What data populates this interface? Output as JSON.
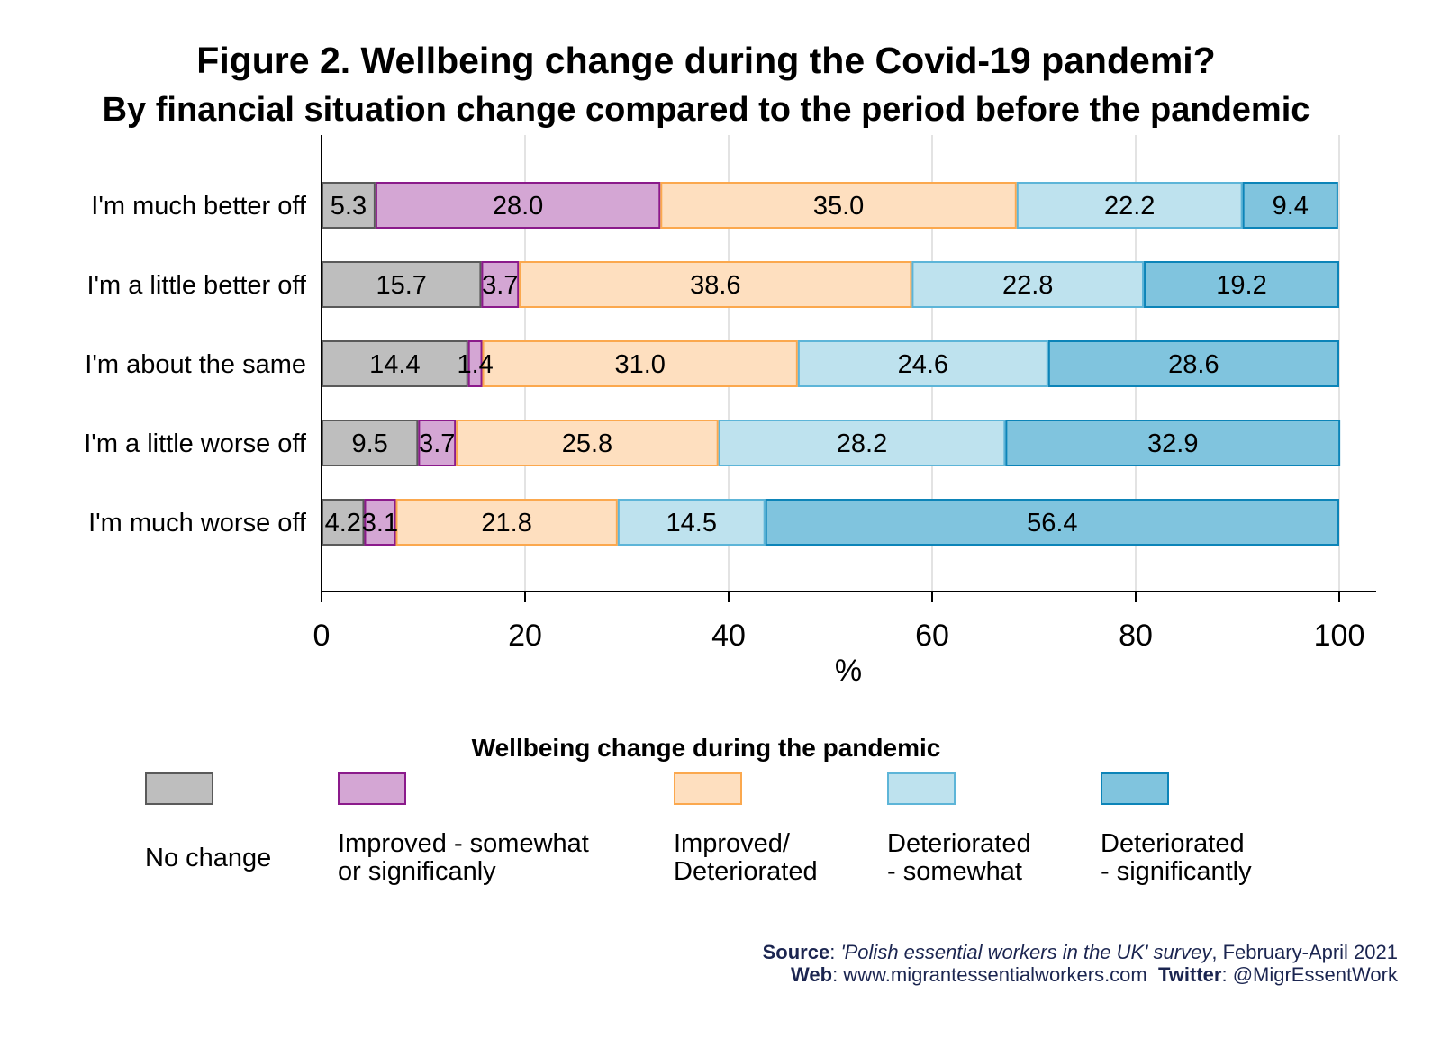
{
  "chart_data": {
    "type": "bar",
    "orientation": "horizontal",
    "stacked": true,
    "title": "Figure 2. Wellbeing change during the Covid-19 pandemi?",
    "subtitle": "By financial situation change compared to the period before the pandemic",
    "xlabel": "%",
    "ylabel": "",
    "xlim": [
      0,
      100
    ],
    "xticks": [
      "0",
      "20",
      "40",
      "60",
      "80",
      "100"
    ],
    "xtick_values": [
      0,
      20,
      40,
      60,
      80,
      100
    ],
    "grid": true,
    "categories": [
      "I'm much better off",
      "I'm a little better off",
      "I'm about the same",
      "I'm a little worse off",
      "I'm much worse off"
    ],
    "series": [
      {
        "name": "No change",
        "values": [
          5.3,
          15.7,
          14.4,
          9.5,
          4.2
        ],
        "fill": "#bebebe",
        "stroke": "#5a5a5a"
      },
      {
        "name": "Improved - somewhat or significanly",
        "values": [
          28.0,
          3.7,
          1.4,
          3.7,
          3.1
        ],
        "fill": "#d4a6d4",
        "stroke": "#8b1a8b"
      },
      {
        "name": "Improved/ Deteriorated",
        "values": [
          35.0,
          38.6,
          31.0,
          25.8,
          21.8
        ],
        "fill": "#fedfbf",
        "stroke": "#fba84e"
      },
      {
        "name": "Deteriorated - somewhat",
        "values": [
          22.2,
          22.8,
          24.6,
          28.2,
          14.5
        ],
        "fill": "#bee2ee",
        "stroke": "#5db5d8"
      },
      {
        "name": "Deteriorated - significantly",
        "values": [
          9.4,
          19.2,
          28.6,
          32.9,
          56.4
        ],
        "fill": "#80c4de",
        "stroke": "#0c84b8"
      }
    ],
    "legend": {
      "title": "Wellbeing change during the pandemic",
      "position": "bottom",
      "labels": [
        "No change",
        "Improved - somewhat\nor significanly",
        "Improved/\nDeteriorated",
        "Deteriorated\n- somewhat",
        "Deteriorated\n- significantly"
      ]
    }
  },
  "footer": {
    "source_label": "Source",
    "source_italic": "'Polish essential workers in the UK' survey",
    "source_rest": ", February-April 2021",
    "web_label": "Web",
    "web_value": ": www.migrantessentialworkers.com",
    "twitter_label": "Twitter",
    "twitter_value": ": @MigrEssentWork"
  }
}
